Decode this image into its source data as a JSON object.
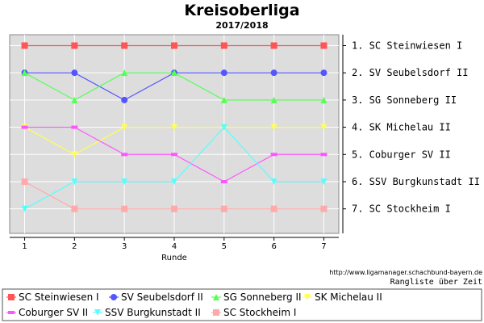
{
  "chart_data": {
    "type": "line",
    "title": "Kreisoberliga",
    "subtitle": "2017/2018",
    "xlabel": "Runde",
    "x": [
      1,
      2,
      3,
      4,
      5,
      6,
      7
    ],
    "ylim": [
      7.9,
      0.6
    ],
    "y_inverted": true,
    "grid": true,
    "legend_position": "bottom",
    "rank_labels": [
      "1. SC Steinwiesen I",
      "2. SV Seubelsdorf II",
      "3. SG Sonneberg II",
      "4. SK Michelau II",
      "5. Coburger SV II",
      "6. SSV Burgkunstadt II",
      "7. SC Stockheim I"
    ],
    "series": [
      {
        "name": "SC Steinwiesen I",
        "values": [
          1,
          1,
          1,
          1,
          1,
          1,
          1
        ],
        "color": "#ff5555",
        "marker": "square"
      },
      {
        "name": "SV Seubelsdorf II",
        "values": [
          2,
          2,
          3,
          2,
          2,
          2,
          2
        ],
        "color": "#5555ff",
        "marker": "circle"
      },
      {
        "name": "SG Sonneberg II",
        "values": [
          2,
          3,
          2,
          2,
          3,
          3,
          3
        ],
        "color": "#55ff55",
        "marker": "triangle-up"
      },
      {
        "name": "SK Michelau II",
        "values": [
          4,
          5,
          4,
          4,
          4,
          4,
          4
        ],
        "color": "#ffff55",
        "marker": "triangle-down"
      },
      {
        "name": "Coburger SV II",
        "values": [
          4,
          4,
          5,
          5,
          6,
          5,
          5
        ],
        "color": "#ff55ff",
        "marker": "rect"
      },
      {
        "name": "SSV Burgkunstadt II",
        "values": [
          7,
          6,
          6,
          6,
          4,
          6,
          6
        ],
        "color": "#55ffff",
        "marker": "triangle-down"
      },
      {
        "name": "SC Stockheim I",
        "values": [
          6,
          7,
          7,
          7,
          7,
          7,
          7
        ],
        "color": "#ffaaaa",
        "marker": "square"
      }
    ],
    "footer_url": "http://www.ligamanager.schachbund-bayern.de",
    "footer_note": "Rangliste über Zeit"
  },
  "colors": {
    "plot_background": "#dddddd",
    "gridline": "#ffffff"
  }
}
